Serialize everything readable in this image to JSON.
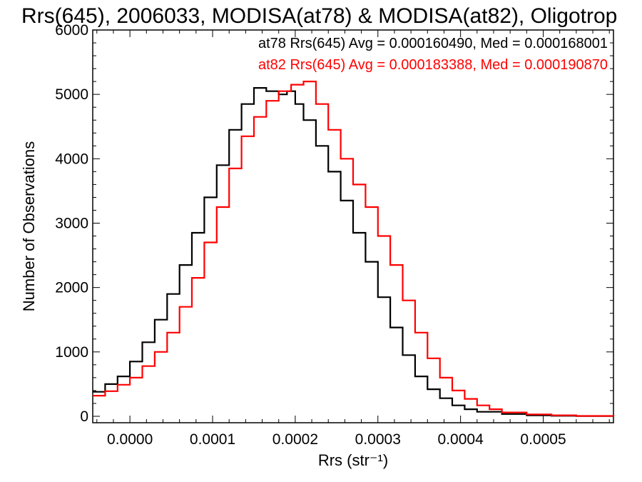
{
  "chart_data": {
    "type": "line",
    "step": true,
    "title": "Rrs(645), 2006033, MODISA(at78) & MODISA(at82), Oligotrop",
    "xlabel": "Rrs (str⁻¹)",
    "ylabel": "Number of Observations",
    "xlim": [
      -4.5e-05,
      0.000585
    ],
    "ylim": [
      -100,
      6000
    ],
    "xticks": [
      0.0,
      0.0001,
      0.0002,
      0.0003,
      0.0004,
      0.0005
    ],
    "xtick_labels": [
      "0.0000",
      "0.0001",
      "0.0002",
      "0.0003",
      "0.0004",
      "0.0005"
    ],
    "yticks": [
      0,
      1000,
      2000,
      3000,
      4000,
      5000,
      6000
    ],
    "ytick_labels": [
      "0",
      "1000",
      "2000",
      "3000",
      "4000",
      "5000",
      "6000"
    ],
    "annotations": [
      "at78 Rrs(645) Avg = 0.000160490, Med = 0.000168001",
      "at82 Rrs(645) Avg = 0.000183388, Med = 0.000190870"
    ],
    "series": [
      {
        "color": "#000000",
        "x": [
          -4.5e-05,
          -3e-05,
          -1.5e-05,
          0.0,
          1.5e-05,
          3e-05,
          4.5e-05,
          6e-05,
          7.5e-05,
          9e-05,
          0.000105,
          0.00012,
          0.000135,
          0.00015,
          0.000165,
          0.00018,
          0.00019,
          0.0002,
          0.00021,
          0.000225,
          0.00024,
          0.000255,
          0.00027,
          0.000285,
          0.0003,
          0.000315,
          0.00033,
          0.000345,
          0.00036,
          0.000375,
          0.00039,
          0.000405,
          0.00042,
          0.00045,
          0.00048,
          0.00051,
          0.00054,
          0.000585
        ],
        "y": [
          380,
          500,
          620,
          850,
          1150,
          1500,
          1900,
          2350,
          2850,
          3400,
          3900,
          4450,
          4850,
          5100,
          5050,
          5000,
          5050,
          4850,
          4600,
          4200,
          3800,
          3350,
          2850,
          2400,
          1850,
          1380,
          950,
          620,
          420,
          280,
          170,
          110,
          70,
          35,
          15,
          8,
          3,
          0
        ]
      },
      {
        "color": "#ff0000",
        "x": [
          -4.5e-05,
          -3e-05,
          -1.5e-05,
          0.0,
          1.5e-05,
          3e-05,
          4.5e-05,
          6e-05,
          7.5e-05,
          9e-05,
          0.000105,
          0.00012,
          0.000135,
          0.00015,
          0.000165,
          0.00018,
          0.000195,
          0.00021,
          0.000225,
          0.00024,
          0.000255,
          0.00027,
          0.000285,
          0.0003,
          0.000315,
          0.00033,
          0.000345,
          0.00036,
          0.000375,
          0.00039,
          0.000405,
          0.00042,
          0.000435,
          0.00045,
          0.00048,
          0.00051,
          0.00054,
          0.000585
        ],
        "y": [
          320,
          390,
          490,
          600,
          780,
          1000,
          1300,
          1700,
          2150,
          2700,
          3250,
          3850,
          4350,
          4650,
          4900,
          5050,
          5150,
          5200,
          4850,
          4450,
          4000,
          3600,
          3250,
          2800,
          2350,
          1800,
          1300,
          900,
          600,
          400,
          270,
          170,
          110,
          60,
          30,
          15,
          5,
          0
        ]
      }
    ]
  }
}
